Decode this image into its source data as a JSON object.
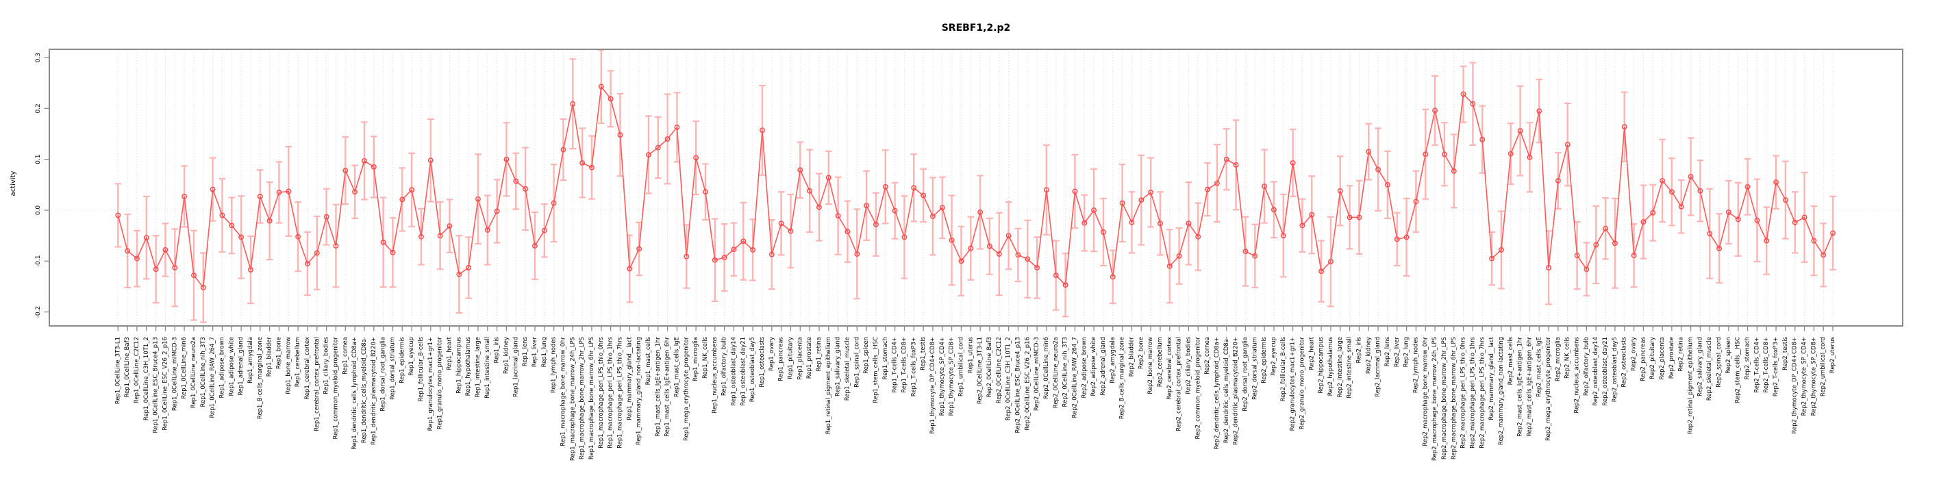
{
  "title": "SREBF1,2.p2",
  "colors": {
    "line": "#ff5a5a",
    "point_stroke": "#ff4a4a",
    "error_bar": "#ffb3b3",
    "grid": "#d4d4d4",
    "zero_line": "#e0e0e0",
    "box": "#8a8a8a",
    "text": "#000000",
    "background": "#ffffff"
  },
  "chart_data": {
    "type": "line",
    "title": "SREBF1,2.p2",
    "xlabel": "",
    "ylabel": "activity",
    "ylim": [
      -0.2275,
      0.3163
    ],
    "yticks": [
      0.3,
      0.2,
      0.1,
      0.0,
      -0.1,
      -0.2
    ],
    "ytick_labels": [
      "0.3",
      "0.2",
      "0.1",
      "0.0",
      "-0.1",
      "-0.2"
    ],
    "grid": "vertical dotted gridline at every sample; dotted horizontal line at y=0",
    "legend_position": "none",
    "point_style": "open-circle with symmetric error bars",
    "categories": [
      "Rep1_0CellLine_3T3-L1",
      "Rep1_0CellLine_Baf3",
      "Rep1_0CellLine_C2C12",
      "Rep1_0CellLine_C3H_10T1_2",
      "Rep1_0CellLine_ESC_Bruce4_p13",
      "Rep1_0CellLine_ESC_V26_2_p16",
      "Rep1_0CellLine_mIMCD-3",
      "Rep1_0CellLine_min6",
      "Rep1_0CellLine_neuro2a",
      "Rep1_0CellLine_nih_3T3",
      "Rep1_0CellLine_RAW_264_7",
      "Rep1_adipose_brown",
      "Rep1_adipose_white",
      "Rep1_adrenal_gland",
      "Rep1_amygdala",
      "Rep1_B-cells_marginal_zone",
      "Rep1_bladder",
      "Rep1_bone",
      "Rep1_bone_marrow",
      "Rep1_cerebellum",
      "Rep1_cerebral_cortex",
      "Rep1_cerebral_cortex_prefrontal",
      "Rep1_ciliary_bodies",
      "Rep1_common_myeloid_progenitor",
      "Rep1_cornea",
      "Rep1_dendritic_cells_lymphoid_CD8a+",
      "Rep1_dendritic_cells_myeloid_CD8a-",
      "Rep1_dendritic_plasmacytoid_B220+",
      "Rep1_dorsal_root_ganglia",
      "Rep1_dorsal_striatum",
      "Rep1_epidermis",
      "Rep1_eyecup",
      "Rep1_follicular_B-cells",
      "Rep1_granulocytes_mac1+gr1+",
      "Rep1_granulo_mono_progenitor",
      "Rep1_heart",
      "Rep1_hippocampus",
      "Rep1_hypothalamus",
      "Rep1_intestine_large",
      "Rep1_intestine_small",
      "Rep1_iris",
      "Rep1_kidney",
      "Rep1_lacrimal_gland",
      "Rep1_lens",
      "Rep1_liver",
      "Rep1_lung",
      "Rep1_lymph_nodes",
      "Rep1_macrophage_bone_marrow_0hr",
      "Rep1_macrophage_bone_marrow_24h_LPS",
      "Rep1_macrophage_bone_marrow_2hr_LPS",
      "Rep1_macrophage_bone_marrow_6hr_LPS",
      "Rep1_macrophage_peri_LPS_thio_0hrs",
      "Rep1_macrophage_peri_LPS_thio_1hrs",
      "Rep1_macrophage_peri_LPS_thio_7hrs",
      "Rep1_mammary_gland__lact",
      "Rep1_mammary_gland_non-lactating",
      "Rep1_mast_cells",
      "Rep1_mast_cells_IgE+antigen_1hr",
      "Rep1_mast_cells_IgE+antigen_6hr",
      "Rep1_mast_cells_IgE",
      "Rep1_mega_erythrocyte_progenitor",
      "Rep1_microglia",
      "Rep1_NK_cells",
      "Rep1_nucleus_accumbens",
      "Rep1_olfactory_bulb",
      "Rep1_osteoblast_day14",
      "Rep1_osteoblast_day21",
      "Rep1_osteoblast_day5",
      "Rep1_osteoclasts",
      "Rep1_ovary",
      "Rep1_pancreas",
      "Rep1_pituitary",
      "Rep1_placenta",
      "Rep1_prostate",
      "Rep1_retina",
      "Rep1_retinal_pigment_epithelium",
      "Rep1_salivary_gland",
      "Rep1_skeletal_muscle",
      "Rep1_spinal_cord",
      "Rep1_spleen",
      "Rep1_stem_cells__HSC",
      "Rep1_stomach",
      "Rep1_T-cells_CD4+",
      "Rep1_T-cells_CD8+",
      "Rep1_T-cells_foxP3+",
      "Rep1_testis",
      "Rep1_thymocyte_DP_CD4+CD8+",
      "Rep1_thymocyte_SP_CD4+",
      "Rep1_thymocyte_SP_CD8+",
      "Rep1_umbilical_cord",
      "Rep1_uterus",
      "Rep2_0CellLine_3T3-L1",
      "Rep2_0CellLine_Baf3",
      "Rep2_0CellLine_C2C12",
      "Rep2_0CellLine_C3H_10T1_2",
      "Rep2_0CellLine_ESC_Bruce4_p13",
      "Rep2_0CellLine_ESC_V26_2_p16",
      "Rep2_0CellLine_mIMCD-3",
      "Rep2_0CellLine_min6",
      "Rep2_0CellLine_neuro2a",
      "Rep2_0CellLine_nih_3T3",
      "Rep2_0CellLine_RAW_264_7",
      "Rep2_adipose_brown",
      "Rep2_adipose_white",
      "Rep2_adrenal_gland",
      "Rep2_amygdala",
      "Rep2_B-cells_marginal_zone",
      "Rep2_bladder",
      "Rep2_bone",
      "Rep2_bone_marrow",
      "Rep2_cerebellum",
      "Rep2_cerebral_cortex",
      "Rep2_cerebral_cortex_prefrontal",
      "Rep2_ciliary_bodies",
      "Rep2_common_myeloid_progenitor",
      "Rep2_cornea",
      "Rep2_dendritic_cells_lymphoid_CD8a+",
      "Rep2_dendritic_cells_myeloid_CD8a-",
      "Rep2_dendritic_plasmacytoid_B220+",
      "Rep2_dorsal_root_ganglia",
      "Rep2_dorsal_striatum",
      "Rep2_epidermis",
      "Rep2_eyecup",
      "Rep2_follicular_B-cells",
      "Rep2_granulocytes_mac1+gr1+",
      "Rep2_granulo_mono_progenitor",
      "Rep2_heart",
      "Rep2_hippocampus",
      "Rep2_hypothalamus",
      "Rep2_intestine_large",
      "Rep2_intestine_small",
      "Rep2_iris",
      "Rep2_kidney",
      "Rep2_lacrimal_gland",
      "Rep2_lens",
      "Rep2_liver",
      "Rep2_lung",
      "Rep2_lymph_nodes",
      "Rep2_macrophage_bone_marrow_0hr",
      "Rep2_macrophage_bone_marrow_24h_LPS",
      "Rep2_macrophage_bone_marrow_2hr_LPS",
      "Rep2_macrophage_bone_marrow_6hr_LPS",
      "Rep2_macrophage_peri_LPS_thio_0hrs",
      "Rep2_macrophage_peri_LPS_thio_1hrs",
      "Rep2_macrophage_peri_LPS_thio_7hrs",
      "Rep2_mammary_gland__lact",
      "Rep2_mammary_gland_non-lactating",
      "Rep2_mast_cells",
      "Rep2_mast_cells_IgE+antigen_1hr",
      "Rep2_mast_cells_IgE+antigen_6hr",
      "Rep2_mast_cells_IgE",
      "Rep2_mega_erythrocyte_progenitor",
      "Rep2_microglia",
      "Rep2_NK_cells",
      "Rep2_nucleus_accumbens",
      "Rep2_olfactory_bulb",
      "Rep2_osteoblast_day14",
      "Rep2_osteoblast_day21",
      "Rep2_osteoblast_day5",
      "Rep2_osteoclasts",
      "Rep2_ovary",
      "Rep2_pancreas",
      "Rep2_pituitary",
      "Rep2_placenta",
      "Rep2_prostate",
      "Rep2_retina",
      "Rep2_retinal_pigment_epithelium",
      "Rep2_salivary_gland",
      "Rep2_skeletal_muscle",
      "Rep2_spinal_cord",
      "Rep2_spleen",
      "Rep2_stem_cells__HSC",
      "Rep2_stomach",
      "Rep2_T-cells_CD4+",
      "Rep2_T-cells_CD8+",
      "Rep2_T-cells_foxP3+",
      "Rep2_testis",
      "Rep2_thymocyte_DP_CD4+CD8+",
      "Rep2_thymocyte_SP_CD4+",
      "Rep2_thymocyte_SP_CD8+",
      "Rep2_umbilical_cord",
      "Rep2_uterus"
    ],
    "values": [
      -0.01,
      -0.08,
      -0.095,
      -0.054,
      -0.116,
      -0.078,
      -0.113,
      0.027,
      -0.128,
      -0.152,
      0.041,
      -0.01,
      -0.03,
      -0.053,
      -0.117,
      0.027,
      -0.021,
      0.035,
      0.037,
      -0.052,
      -0.105,
      -0.084,
      -0.013,
      -0.07,
      0.078,
      0.036,
      0.097,
      0.085,
      -0.063,
      -0.083,
      0.021,
      0.04,
      -0.052,
      0.098,
      -0.05,
      -0.031,
      -0.126,
      -0.113,
      0.022,
      -0.039,
      -0.002,
      0.1,
      0.057,
      0.042,
      -0.07,
      -0.04,
      0.014,
      0.119,
      0.209,
      0.093,
      0.084,
      0.243,
      0.219,
      0.148,
      -0.115,
      -0.076,
      0.109,
      0.123,
      0.14,
      0.163,
      -0.091,
      0.103,
      0.036,
      -0.098,
      -0.093,
      -0.077,
      -0.061,
      -0.078,
      0.157,
      -0.087,
      -0.026,
      -0.041,
      0.079,
      0.038,
      0.006,
      0.064,
      -0.011,
      -0.042,
      -0.086,
      0.009,
      -0.028,
      0.046,
      -0.001,
      -0.053,
      0.044,
      0.029,
      -0.012,
      0.005,
      -0.059,
      -0.1,
      -0.075,
      -0.004,
      -0.071,
      -0.086,
      -0.05,
      -0.088,
      -0.096,
      -0.113,
      0.04,
      -0.128,
      -0.147,
      0.037,
      -0.025,
      0.0,
      -0.043,
      -0.131,
      0.014,
      -0.024,
      0.02,
      0.035,
      -0.026,
      -0.11,
      -0.09,
      -0.026,
      -0.052,
      0.041,
      0.053,
      0.1,
      0.089,
      -0.081,
      -0.09,
      0.047,
      0.001,
      -0.05,
      0.093,
      -0.03,
      -0.009,
      -0.12,
      -0.101,
      0.038,
      -0.014,
      -0.014,
      0.115,
      0.08,
      0.05,
      -0.057,
      -0.053,
      0.017,
      0.11,
      0.196,
      0.11,
      0.077,
      0.228,
      0.209,
      0.139,
      -0.095,
      -0.078,
      0.111,
      0.156,
      0.104,
      0.195,
      -0.113,
      0.058,
      0.129,
      -0.089,
      -0.116,
      -0.068,
      -0.036,
      -0.065,
      0.164,
      -0.089,
      -0.023,
      -0.005,
      0.058,
      0.036,
      0.007,
      0.066,
      0.038,
      -0.046,
      -0.075,
      -0.004,
      -0.018,
      0.046,
      -0.02,
      -0.06,
      0.055,
      0.02,
      -0.024,
      -0.014,
      -0.06,
      -0.088,
      -0.045
    ],
    "errors": [
      0.062,
      0.072,
      0.055,
      0.081,
      0.066,
      0.052,
      0.076,
      0.06,
      0.088,
      0.068,
      0.062,
      0.072,
      0.055,
      0.081,
      0.066,
      0.052,
      0.076,
      0.06,
      0.088,
      0.068,
      0.062,
      0.072,
      0.055,
      0.081,
      0.066,
      0.052,
      0.076,
      0.06,
      0.088,
      0.068,
      0.062,
      0.072,
      0.055,
      0.081,
      0.066,
      0.052,
      0.076,
      0.06,
      0.088,
      0.068,
      0.062,
      0.072,
      0.055,
      0.081,
      0.066,
      0.052,
      0.076,
      0.06,
      0.088,
      0.068,
      0.062,
      0.072,
      0.055,
      0.081,
      0.066,
      0.052,
      0.076,
      0.06,
      0.088,
      0.068,
      0.062,
      0.072,
      0.055,
      0.081,
      0.066,
      0.052,
      0.076,
      0.06,
      0.088,
      0.068,
      0.062,
      0.072,
      0.055,
      0.081,
      0.066,
      0.052,
      0.076,
      0.06,
      0.088,
      0.068,
      0.062,
      0.072,
      0.055,
      0.081,
      0.066,
      0.052,
      0.076,
      0.06,
      0.088,
      0.068,
      0.062,
      0.072,
      0.055,
      0.081,
      0.066,
      0.052,
      0.076,
      0.06,
      0.088,
      0.068,
      0.062,
      0.072,
      0.055,
      0.081,
      0.066,
      0.052,
      0.076,
      0.06,
      0.088,
      0.068,
      0.062,
      0.072,
      0.055,
      0.081,
      0.066,
      0.052,
      0.076,
      0.06,
      0.088,
      0.068,
      0.062,
      0.072,
      0.055,
      0.081,
      0.066,
      0.052,
      0.076,
      0.06,
      0.088,
      0.068,
      0.062,
      0.072,
      0.055,
      0.081,
      0.066,
      0.052,
      0.076,
      0.06,
      0.088,
      0.068,
      0.062,
      0.072,
      0.055,
      0.081,
      0.066,
      0.052,
      0.076,
      0.06,
      0.088,
      0.068,
      0.062,
      0.072,
      0.055,
      0.081,
      0.066,
      0.052,
      0.076,
      0.06,
      0.088,
      0.068,
      0.062,
      0.072,
      0.055,
      0.081,
      0.066,
      0.052,
      0.076,
      0.06,
      0.088,
      0.068,
      0.062,
      0.072,
      0.055,
      0.081,
      0.066,
      0.052,
      0.076,
      0.06,
      0.088,
      0.068,
      0.062,
      0.072
    ]
  }
}
